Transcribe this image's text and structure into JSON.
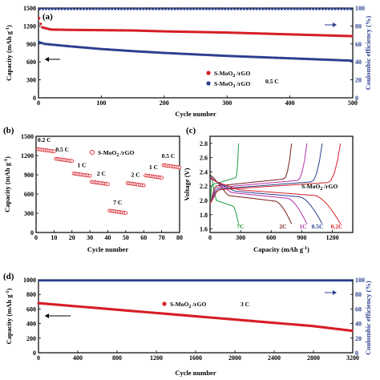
{
  "chart_data": [
    {
      "panel": "(a)",
      "type": "scatter",
      "xlabel": "Cycle number",
      "ylabel": "Capacity (mAh g-1)",
      "ylabel_right": "Coulombic efficiency (%)",
      "xlim": [
        0,
        500
      ],
      "ylim": [
        0,
        1500
      ],
      "ylim_right": [
        0,
        100
      ],
      "xticks": [
        0,
        100,
        200,
        300,
        400,
        500
      ],
      "yticks": [
        0,
        300,
        600,
        900,
        1200,
        1500
      ],
      "yticks_right": [
        0,
        20,
        40,
        60,
        80,
        100
      ],
      "rate_label": "0.5 C",
      "legend": [
        "S-MoO2/rGO",
        "S-MoO3/rGO"
      ],
      "series": [
        {
          "name": "S-MoO2/rGO",
          "color": "#d61f26",
          "x": [
            1,
            5,
            20,
            50,
            100,
            150,
            200,
            250,
            300,
            350,
            400,
            450,
            500
          ],
          "y": [
            1330,
            1180,
            1140,
            1135,
            1130,
            1125,
            1110,
            1100,
            1090,
            1075,
            1060,
            1045,
            1030
          ]
        },
        {
          "name": "S-MoO3/rGO",
          "color": "#2b3f8f",
          "x": [
            1,
            10,
            50,
            100,
            150,
            200,
            250,
            300,
            350,
            400,
            450,
            500
          ],
          "y": [
            930,
            900,
            860,
            815,
            780,
            750,
            725,
            700,
            680,
            660,
            640,
            620
          ]
        },
        {
          "name": "coulombic",
          "axis": "right",
          "color": "#2b3f8f",
          "x": [
            1,
            500
          ],
          "y": [
            99,
            99
          ]
        }
      ]
    },
    {
      "panel": "(b)",
      "type": "scatter",
      "xlabel": "Cycle number",
      "ylabel": "Capacity (mAh g-1)",
      "xlim": [
        0,
        80
      ],
      "ylim": [
        0,
        1500
      ],
      "xticks": [
        0,
        10,
        20,
        30,
        40,
        50,
        60,
        70,
        80
      ],
      "yticks": [
        0,
        300,
        600,
        900,
        1200,
        1500
      ],
      "legend": [
        "S-MoO2/rGO"
      ],
      "segments": [
        {
          "label": "0.2 C",
          "x": [
            1,
            10
          ],
          "y": 1300
        },
        {
          "label": "0.5 C",
          "x": [
            11,
            20
          ],
          "y": 1150
        },
        {
          "label": "1 C",
          "x": [
            21,
            30
          ],
          "y": 920
        },
        {
          "label": "2 C",
          "x": [
            31,
            40
          ],
          "y": 790
        },
        {
          "label": "7 C",
          "x": [
            41,
            50
          ],
          "y": 340
        },
        {
          "label": "2 C",
          "x": [
            51,
            60
          ],
          "y": 770
        },
        {
          "label": "1 C",
          "x": [
            61,
            70
          ],
          "y": 890
        },
        {
          "label": "0.5 C",
          "x": [
            71,
            80
          ],
          "y": 1050
        }
      ]
    },
    {
      "panel": "(c)",
      "type": "line",
      "xlabel": "Capacity (mAh g-1)",
      "ylabel": "Voltage (V)",
      "xlim": [
        0,
        1400
      ],
      "ylim": [
        1.55,
        2.9
      ],
      "xticks": [
        0,
        300,
        600,
        900,
        1200
      ],
      "yticks": [
        1.6,
        1.8,
        2.0,
        2.2,
        2.4,
        2.6,
        2.8
      ],
      "legend": [
        "S-MoO2/rGO"
      ],
      "series": [
        {
          "name": "7C",
          "color": "#1e9a3c",
          "max": 280
        },
        {
          "name": "2C",
          "color": "#7a1a1a",
          "max": 800
        },
        {
          "name": "1C",
          "color": "#b033a8",
          "max": 950
        },
        {
          "name": "0.5C",
          "color": "#2b3f8f",
          "max": 1100
        },
        {
          "name": "0.2C",
          "color": "#d61f26",
          "max": 1280
        }
      ]
    },
    {
      "panel": "(d)",
      "type": "scatter",
      "xlabel": "Cycle number",
      "ylabel": "Capacity (mAh g-1)",
      "ylabel_right": "Coulombic efficiency (%)",
      "xlim": [
        0,
        3200
      ],
      "ylim": [
        0,
        1000
      ],
      "ylim_right": [
        0,
        100
      ],
      "xticks": [
        0,
        400,
        800,
        1200,
        1600,
        2000,
        2400,
        2800,
        3200
      ],
      "yticks": [
        0,
        100,
        200,
        300,
        400,
        500,
        600,
        700,
        800,
        900,
        1000
      ],
      "yticks_right": [
        0,
        20,
        40,
        60,
        80,
        100
      ],
      "rate_label": "3 C",
      "legend": [
        "S-MoO2/rGO"
      ],
      "series": [
        {
          "name": "S-MoO2/rGO",
          "color": "#d61f26",
          "x": [
            1,
            400,
            800,
            1200,
            1600,
            2000,
            2400,
            2800,
            3200
          ],
          "y": [
            680,
            635,
            590,
            545,
            500,
            455,
            410,
            365,
            300
          ]
        },
        {
          "name": "coulombic",
          "axis": "right",
          "color": "#2b3f8f",
          "x": [
            1,
            3200
          ],
          "y": [
            99,
            99
          ]
        }
      ]
    }
  ]
}
